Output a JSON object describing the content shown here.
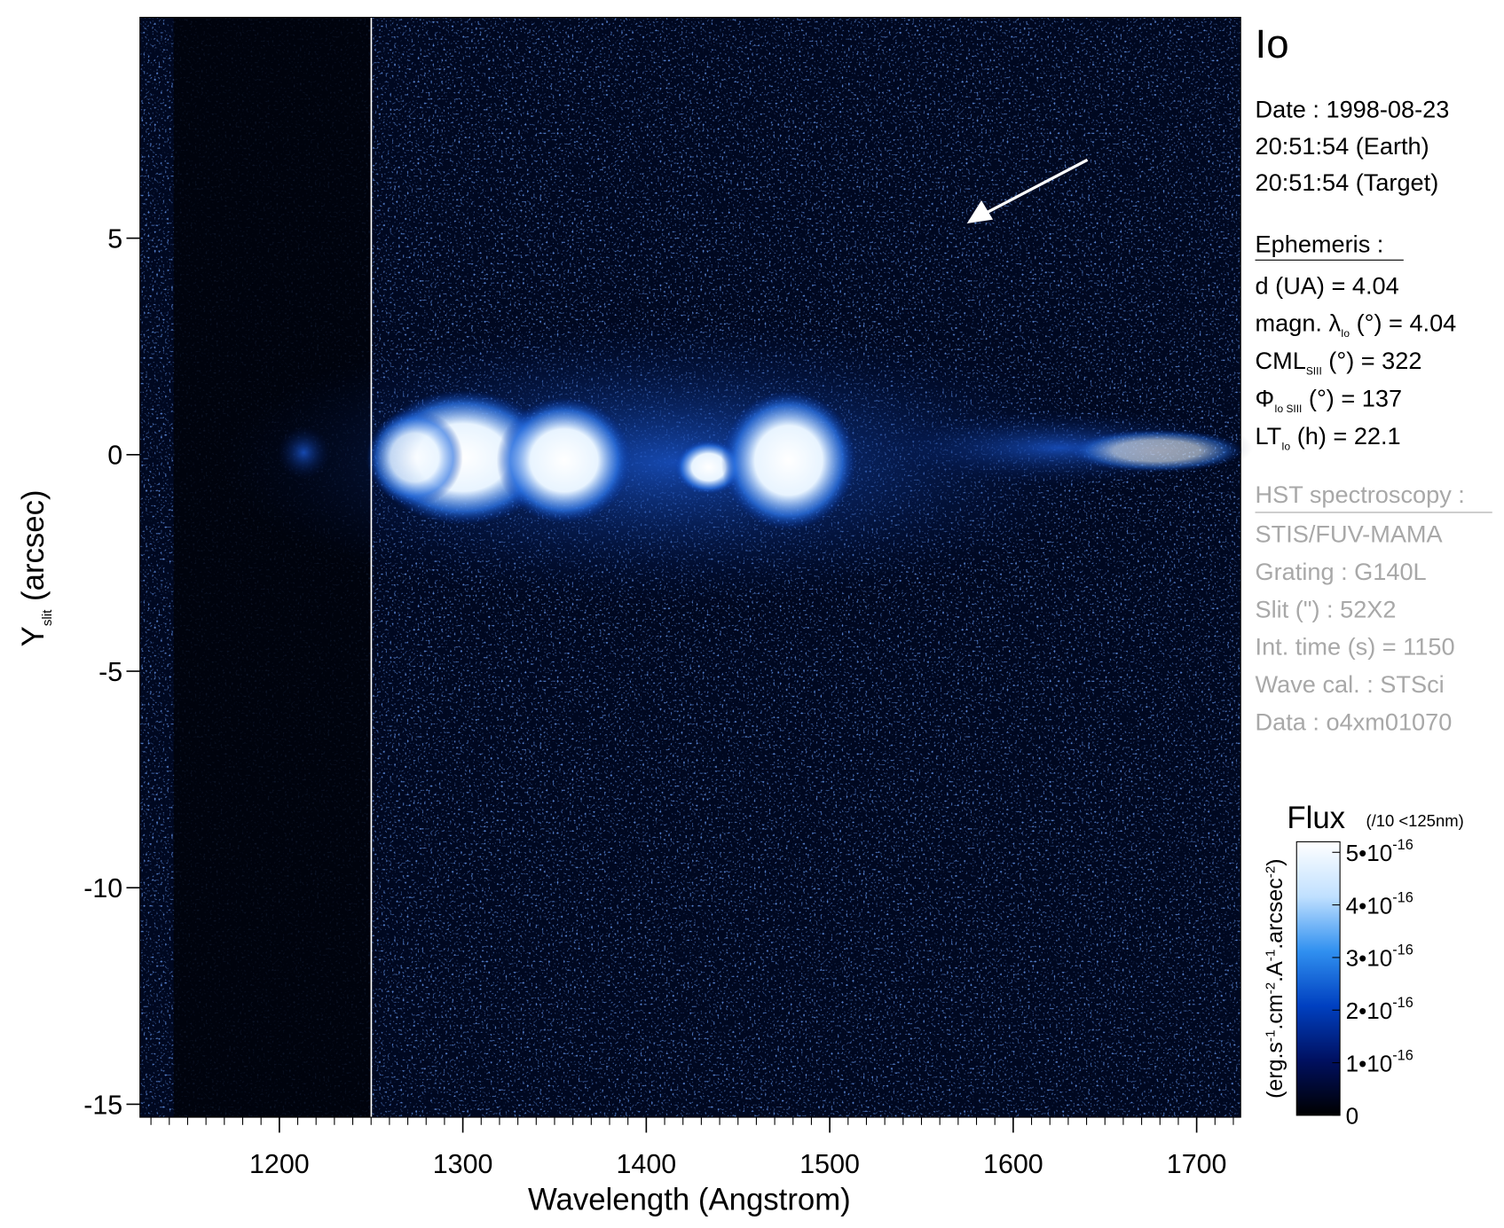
{
  "chart_data": {
    "type": "heatmap",
    "xlabel": "Wavelength (Angstrom)",
    "ylabel": {
      "main": "Y",
      "sub": "slit",
      "rest": " (arcsec)"
    },
    "xlim": [
      1124,
      1724
    ],
    "ylim": [
      -15.3,
      10.1
    ],
    "xticks": [
      1200,
      1300,
      1400,
      1500,
      1600,
      1700
    ],
    "yticks": [
      -15,
      -10,
      -5,
      0,
      5
    ],
    "xminor_step": 10,
    "panel": {
      "title": "Io",
      "date": [
        "Date : 1998-08-23",
        "20:51:54 (Earth)",
        "20:51:54 (Target)"
      ],
      "ephemeris_title": "Ephemeris :",
      "ephemeris": [
        {
          "main": "d (UA)     = 4.04",
          "sub": "",
          "rest": ""
        },
        {
          "main": "magn. λ",
          "sub": "Io",
          "rest": " (°)  = 4.04"
        },
        {
          "main": "CML",
          "sub": "SIII",
          "rest": " (°) = 322"
        },
        {
          "main": "Φ",
          "sub": "Io SIII",
          "rest": " (°) = 137"
        },
        {
          "main": "LT",
          "sub": "Io",
          "rest": " (h) = 22.1"
        }
      ],
      "hst_title": "HST spectroscopy :",
      "hst": [
        "STIS/FUV-MAMA",
        "Grating : G140L",
        "Slit (\") : 52X2",
        "Int. time (s) = 1150",
        "Wave cal. : STSci",
        "Data : o4xm01070"
      ]
    },
    "colorbar": {
      "title": "Flux",
      "note": "(/10 <125nm)",
      "label": [
        {
          "t": "(erg.s",
          "s": "-1"
        },
        {
          "t": ".cm",
          "s": "-2"
        },
        {
          "t": ".A",
          "s": "-1"
        },
        {
          "t": ".arcsec",
          "s": "-2"
        },
        {
          "t": ")",
          "s": ""
        }
      ],
      "lim": [
        0,
        5.2e-16
      ],
      "ticks": [
        {
          "value": 0,
          "label": "0",
          "exp": ""
        },
        {
          "value": 1e-16,
          "label": "1•10",
          "exp": "-16"
        },
        {
          "value": 2e-16,
          "label": "2•10",
          "exp": "-16"
        },
        {
          "value": 3e-16,
          "label": "3•10",
          "exp": "-16"
        },
        {
          "value": 4e-16,
          "label": "4•10",
          "exp": "-16"
        },
        {
          "value": 5e-16,
          "label": "5•10",
          "exp": "-16"
        }
      ],
      "colormap": [
        "#000000",
        "#001060",
        "#0040c0",
        "#3090f0",
        "#c0e0ff",
        "#ffffff"
      ]
    }
  }
}
